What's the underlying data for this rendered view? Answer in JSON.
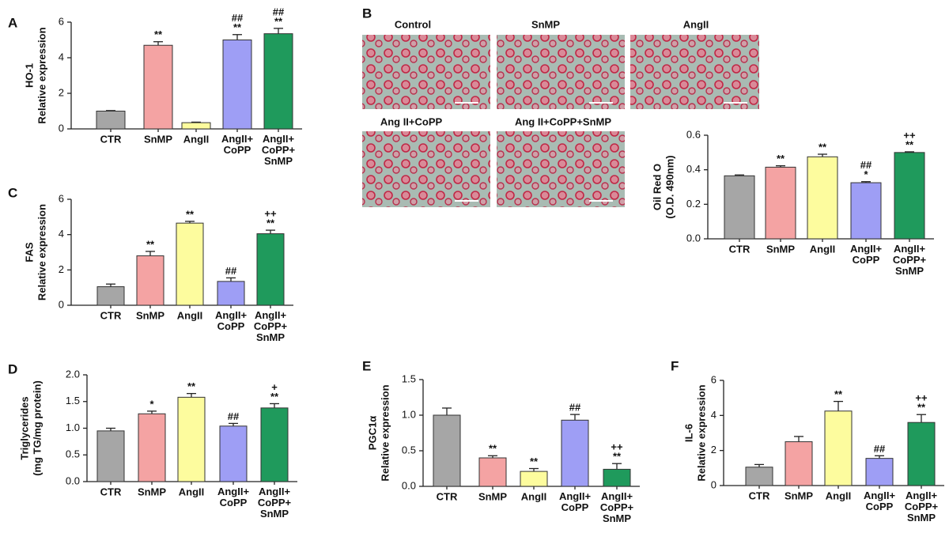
{
  "images": {
    "panel": "B",
    "labels": [
      "Control",
      "SnMP",
      "AngII",
      "Ang II+CoPP",
      "Ang II+CoPP+SnMP"
    ]
  },
  "chart_data": [
    {
      "type": "bar",
      "panel": "A",
      "ylabel": [
        "HO-1",
        "Relative expression"
      ],
      "categories": [
        "CTR",
        "SnMP",
        "AngII",
        "AngII+\nCoPP",
        "AngII+\nCoPP+\nSnMP"
      ],
      "values": [
        1.0,
        4.7,
        0.35,
        5.0,
        5.35
      ],
      "errors": [
        0.03,
        0.2,
        0.03,
        0.3,
        0.3
      ],
      "annotations": [
        [],
        [
          "**"
        ],
        [],
        [
          "##",
          "**"
        ],
        [
          "##",
          "**"
        ]
      ],
      "colors": [
        "#a6a6a6",
        "#f4a3a3",
        "#fdfc9e",
        "#9e9ef5",
        "#1f9a5c"
      ],
      "ylim": [
        0,
        6
      ],
      "yticks": [
        0,
        2,
        4,
        6
      ]
    },
    {
      "type": "bar",
      "ylabel": [
        "Oil Red O",
        "(O.D. 490nm)"
      ],
      "categories": [
        "CTR",
        "SnMP",
        "AngII",
        "AngII+\nCoPP",
        "AngII+\nCoPP+\nSnMP"
      ],
      "values": [
        0.365,
        0.415,
        0.475,
        0.325,
        0.5
      ],
      "errors": [
        0.005,
        0.008,
        0.015,
        0.006,
        0.004
      ],
      "annotations": [
        [],
        [
          "**"
        ],
        [
          "**"
        ],
        [
          "##",
          "*"
        ],
        [
          "++",
          "**"
        ]
      ],
      "colors": [
        "#a6a6a6",
        "#f4a3a3",
        "#fdfc9e",
        "#9e9ef5",
        "#1f9a5c"
      ],
      "ylim": [
        0,
        0.6
      ],
      "yticks": [
        {
          "value": 0,
          "label": "0.0"
        },
        0.2,
        0.4,
        0.6
      ]
    },
    {
      "type": "bar",
      "panel": "C",
      "ylabel": [
        "FAS",
        "Relative expression"
      ],
      "categories": [
        "CTR",
        "SnMP",
        "AngII",
        "AngII+\nCoPP",
        "AngII+\nCoPP+\nSnMP"
      ],
      "values": [
        1.05,
        2.8,
        4.65,
        1.35,
        4.05
      ],
      "errors": [
        0.15,
        0.25,
        0.1,
        0.2,
        0.2
      ],
      "annotations": [
        [],
        [
          "**"
        ],
        [
          "**"
        ],
        [
          "##"
        ],
        [
          "++",
          "**"
        ]
      ],
      "colors": [
        "#a6a6a6",
        "#f4a3a3",
        "#fdfc9e",
        "#9e9ef5",
        "#1f9a5c"
      ],
      "ylim": [
        0,
        6
      ],
      "yticks": [
        0,
        2,
        4,
        6
      ]
    },
    {
      "type": "bar",
      "panel": "D",
      "ylabel": [
        "Triglycerides",
        "(mg TG/mg protein)"
      ],
      "categories": [
        "CTR",
        "SnMP",
        "AngII",
        "AngII+\nCoPP",
        "AngII+\nCoPP+\nSnMP"
      ],
      "values": [
        0.95,
        1.27,
        1.58,
        1.04,
        1.38
      ],
      "errors": [
        0.05,
        0.05,
        0.07,
        0.05,
        0.08
      ],
      "annotations": [
        [],
        [
          "*"
        ],
        [
          "**"
        ],
        [
          "##"
        ],
        [
          "+",
          "**"
        ]
      ],
      "colors": [
        "#a6a6a6",
        "#f4a3a3",
        "#fdfc9e",
        "#9e9ef5",
        "#1f9a5c"
      ],
      "ylim": [
        0,
        2
      ],
      "yticks": [
        {
          "value": 0,
          "label": "0.0"
        },
        0.5,
        {
          "value": 1,
          "label": "1.0"
        },
        1.5,
        {
          "value": 2,
          "label": "2.0"
        }
      ]
    },
    {
      "type": "bar",
      "panel": "E",
      "ylabel": [
        "PGC1α",
        "Relative expression"
      ],
      "categories": [
        "CTR",
        "SnMP",
        "AngII",
        "AngII+\nCoPP",
        "AngII+\nCoPP+\nSnMP"
      ],
      "values": [
        1.0,
        0.4,
        0.21,
        0.93,
        0.24
      ],
      "errors": [
        0.1,
        0.03,
        0.04,
        0.08,
        0.08
      ],
      "annotations": [
        [],
        [
          "**"
        ],
        [
          "**"
        ],
        [
          "##"
        ],
        [
          "++",
          "**"
        ]
      ],
      "colors": [
        "#a6a6a6",
        "#f4a3a3",
        "#fdfc9e",
        "#9e9ef5",
        "#1f9a5c"
      ],
      "ylim": [
        0,
        1.5
      ],
      "yticks": [
        {
          "value": 0,
          "label": "0.0"
        },
        0.5,
        {
          "value": 1,
          "label": "1.0"
        },
        1.5
      ]
    },
    {
      "type": "bar",
      "panel": "F",
      "ylabel": [
        "IL-6",
        "Relative expression"
      ],
      "categories": [
        "CTR",
        "SnMP",
        "AngII",
        "AngII+\nCoPP",
        "AngII+\nCoPP+\nSnMP"
      ],
      "values": [
        1.05,
        2.5,
        4.25,
        1.55,
        3.6
      ],
      "errors": [
        0.15,
        0.3,
        0.55,
        0.15,
        0.45
      ],
      "annotations": [
        [],
        [],
        [
          "**"
        ],
        [
          "##"
        ],
        [
          "++",
          "**"
        ]
      ],
      "colors": [
        "#a6a6a6",
        "#f4a3a3",
        "#fdfc9e",
        "#9e9ef5",
        "#1f9a5c"
      ],
      "ylim": [
        0,
        6
      ],
      "yticks": [
        0,
        2,
        4,
        6
      ]
    }
  ]
}
